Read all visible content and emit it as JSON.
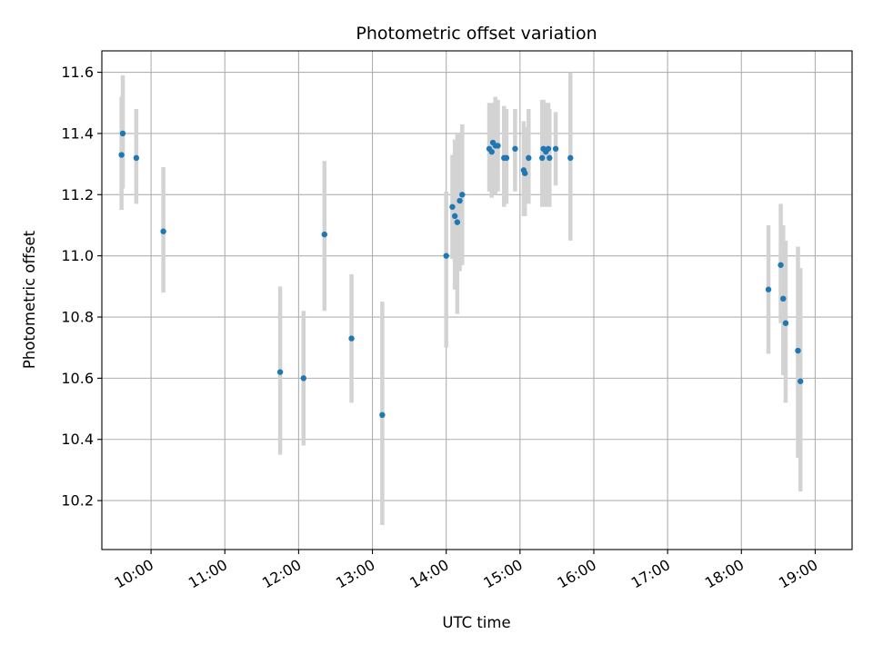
{
  "chart_data": {
    "type": "scatter",
    "title": "Photometric offset variation",
    "xlabel": "UTC time",
    "ylabel": "Photometric offset",
    "x_unit": "UTC HH:MM",
    "xlim": [
      "09:20",
      "19:30"
    ],
    "ylim": [
      10.04,
      11.67
    ],
    "x_ticks": [
      "10:00",
      "11:00",
      "12:00",
      "13:00",
      "14:00",
      "15:00",
      "16:00",
      "17:00",
      "18:00",
      "19:00"
    ],
    "y_ticks": [
      "10.2",
      "10.4",
      "10.6",
      "10.8",
      "11.0",
      "11.2",
      "11.4",
      "11.6"
    ],
    "grid": true,
    "colors": {
      "point": "#1f77b4",
      "errorbar": "#d3d3d3",
      "grid": "#b0b0b0"
    },
    "points": [
      {
        "x": "09:36",
        "y": 11.33,
        "ylo": 11.15,
        "yhi": 11.52
      },
      {
        "x": "09:37",
        "y": 11.4,
        "ylo": 11.22,
        "yhi": 11.59
      },
      {
        "x": "09:48",
        "y": 11.32,
        "ylo": 11.17,
        "yhi": 11.48
      },
      {
        "x": "10:10",
        "y": 11.08,
        "ylo": 10.88,
        "yhi": 11.29
      },
      {
        "x": "11:45",
        "y": 10.62,
        "ylo": 10.35,
        "yhi": 10.9
      },
      {
        "x": "12:04",
        "y": 10.6,
        "ylo": 10.38,
        "yhi": 10.82
      },
      {
        "x": "12:21",
        "y": 11.07,
        "ylo": 10.82,
        "yhi": 11.31
      },
      {
        "x": "12:43",
        "y": 10.73,
        "ylo": 10.52,
        "yhi": 10.94
      },
      {
        "x": "13:08",
        "y": 10.48,
        "ylo": 10.12,
        "yhi": 10.85
      },
      {
        "x": "14:00",
        "y": 11.0,
        "ylo": 10.7,
        "yhi": 11.21
      },
      {
        "x": "14:05",
        "y": 11.16,
        "ylo": 10.99,
        "yhi": 11.33
      },
      {
        "x": "14:07",
        "y": 11.13,
        "ylo": 10.89,
        "yhi": 11.38
      },
      {
        "x": "14:09",
        "y": 11.11,
        "ylo": 10.81,
        "yhi": 11.4
      },
      {
        "x": "14:11",
        "y": 11.18,
        "ylo": 10.95,
        "yhi": 11.4
      },
      {
        "x": "14:13",
        "y": 11.2,
        "ylo": 10.97,
        "yhi": 11.43
      },
      {
        "x": "14:35",
        "y": 11.35,
        "ylo": 11.21,
        "yhi": 11.5
      },
      {
        "x": "14:37",
        "y": 11.34,
        "ylo": 11.19,
        "yhi": 11.48
      },
      {
        "x": "14:38",
        "y": 11.37,
        "ylo": 11.2,
        "yhi": 11.5
      },
      {
        "x": "14:40",
        "y": 11.36,
        "ylo": 11.2,
        "yhi": 11.52
      },
      {
        "x": "14:42",
        "y": 11.36,
        "ylo": 11.21,
        "yhi": 11.51
      },
      {
        "x": "14:47",
        "y": 11.32,
        "ylo": 11.16,
        "yhi": 11.49
      },
      {
        "x": "14:49",
        "y": 11.32,
        "ylo": 11.17,
        "yhi": 11.48
      },
      {
        "x": "14:56",
        "y": 11.35,
        "ylo": 11.21,
        "yhi": 11.48
      },
      {
        "x": "15:03",
        "y": 11.28,
        "ylo": 11.13,
        "yhi": 11.44
      },
      {
        "x": "15:04",
        "y": 11.27,
        "ylo": 11.13,
        "yhi": 11.42
      },
      {
        "x": "15:07",
        "y": 11.32,
        "ylo": 11.17,
        "yhi": 11.48
      },
      {
        "x": "15:18",
        "y": 11.32,
        "ylo": 11.16,
        "yhi": 11.51
      },
      {
        "x": "15:19",
        "y": 11.35,
        "ylo": 11.19,
        "yhi": 11.51
      },
      {
        "x": "15:21",
        "y": 11.34,
        "ylo": 11.16,
        "yhi": 11.5
      },
      {
        "x": "15:23",
        "y": 11.35,
        "ylo": 11.19,
        "yhi": 11.5
      },
      {
        "x": "15:24",
        "y": 11.32,
        "ylo": 11.16,
        "yhi": 11.48
      },
      {
        "x": "15:29",
        "y": 11.35,
        "ylo": 11.23,
        "yhi": 11.47
      },
      {
        "x": "15:41",
        "y": 11.32,
        "ylo": 11.05,
        "yhi": 11.6
      },
      {
        "x": "18:22",
        "y": 10.89,
        "ylo": 10.68,
        "yhi": 11.1
      },
      {
        "x": "18:32",
        "y": 10.97,
        "ylo": 10.78,
        "yhi": 11.17
      },
      {
        "x": "18:34",
        "y": 10.86,
        "ylo": 10.61,
        "yhi": 11.1
      },
      {
        "x": "18:36",
        "y": 10.78,
        "ylo": 10.52,
        "yhi": 11.05
      },
      {
        "x": "18:46",
        "y": 10.69,
        "ylo": 10.34,
        "yhi": 11.03
      },
      {
        "x": "18:48",
        "y": 10.59,
        "ylo": 10.23,
        "yhi": 10.96
      }
    ]
  }
}
